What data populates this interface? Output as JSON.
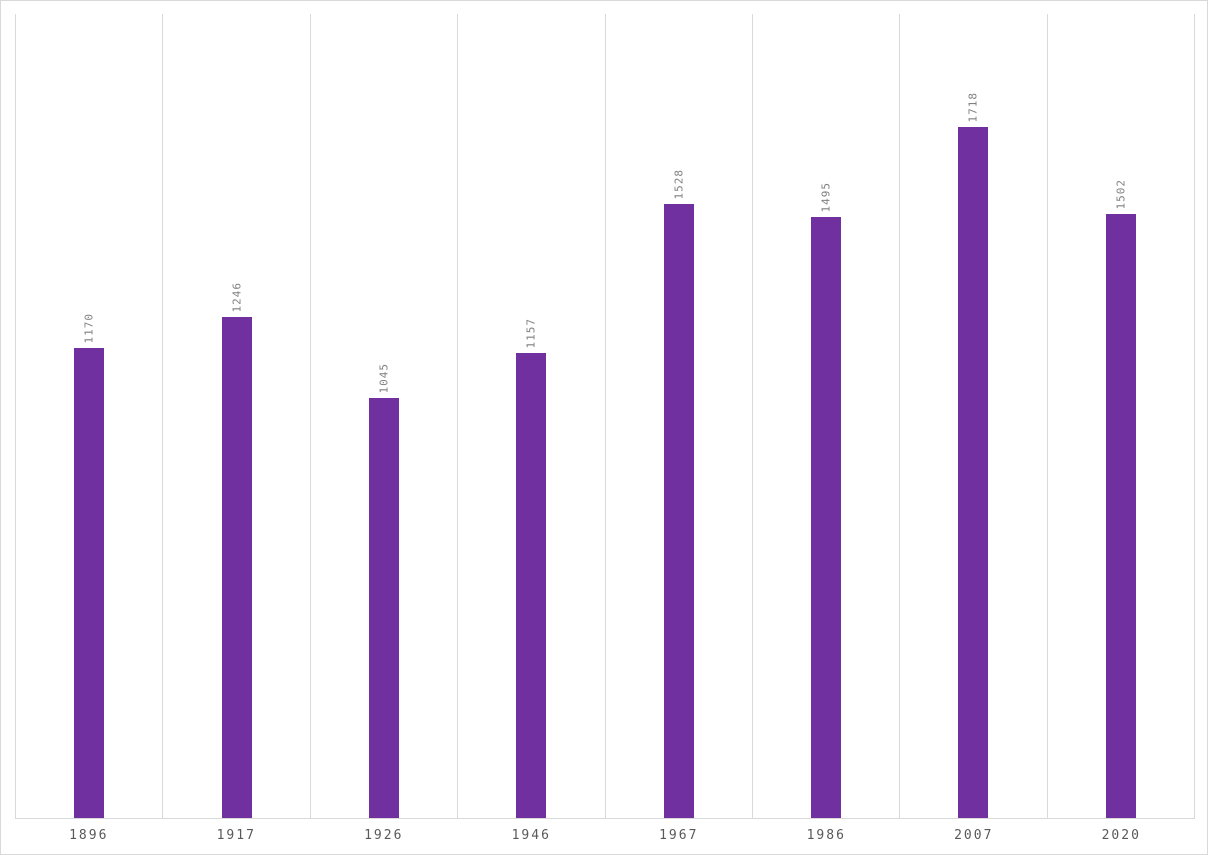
{
  "chart_data": {
    "type": "bar",
    "categories": [
      "1896",
      "1917",
      "1926",
      "1946",
      "1967",
      "1986",
      "2007",
      "2020"
    ],
    "values": [
      1170,
      1246,
      1045,
      1157,
      1528,
      1495,
      1718,
      1502
    ],
    "title": "",
    "xlabel": "",
    "ylabel": "",
    "ylim": [
      0,
      2000
    ],
    "grid": "vertical-category-separators",
    "legend_position": "none",
    "bar_color": "#7030A0",
    "value_label_color": "#808080",
    "value_label_rotation_deg": -90,
    "axis_tick_label_color": "#595959",
    "gridline_color": "#D9D9D9",
    "background_color": "#FFFFFF"
  }
}
